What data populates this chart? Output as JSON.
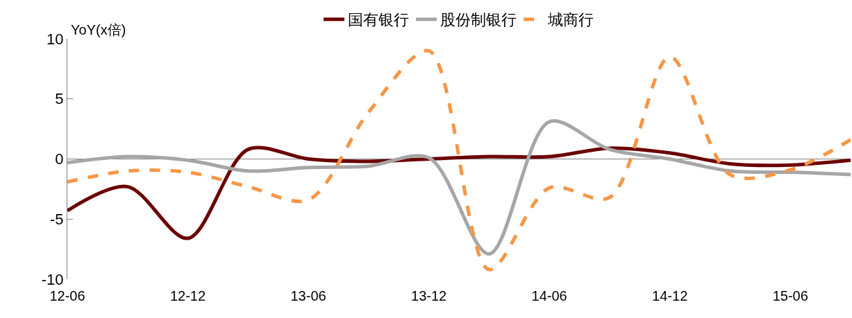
{
  "chart_data": {
    "type": "line",
    "ylabel": "YoY(x倍)",
    "categories": [
      "12-06",
      null,
      "12-12",
      null,
      "13-06",
      null,
      "13-12",
      null,
      "14-06",
      null,
      "14-12",
      null,
      "15-06",
      null
    ],
    "series": [
      {
        "name": "国有银行",
        "color": "#6b0000",
        "line_style": "solid",
        "values": [
          -4.3,
          -2.3,
          -6.6,
          0.8,
          0.0,
          -0.2,
          0.0,
          0.2,
          0.2,
          0.9,
          0.5,
          -0.4,
          -0.5,
          -0.1
        ]
      },
      {
        "name": "股份制银行",
        "color": "#a6a6a6",
        "line_style": "solid",
        "values": [
          -0.3,
          0.2,
          -0.1,
          -1.0,
          -0.7,
          -0.6,
          0.1,
          -7.9,
          3.1,
          0.8,
          0.0,
          -1.0,
          -1.1,
          -1.3
        ]
      },
      {
        "name": "城商行",
        "color": "#f79646",
        "line_style": "dashed",
        "values": [
          -1.9,
          -1.0,
          -1.1,
          -2.3,
          -3.4,
          3.9,
          9.0,
          -9.2,
          -2.4,
          -3.2,
          8.5,
          -1.3,
          -0.9,
          1.6
        ]
      }
    ],
    "ylim": [
      -10,
      10
    ],
    "yticks": [
      -10,
      -5,
      0,
      5,
      10
    ],
    "ref_lines": [
      {
        "axis": "y",
        "value": 0,
        "color": "#808080"
      }
    ],
    "grid": false,
    "legend": "top",
    "marker": "none"
  }
}
